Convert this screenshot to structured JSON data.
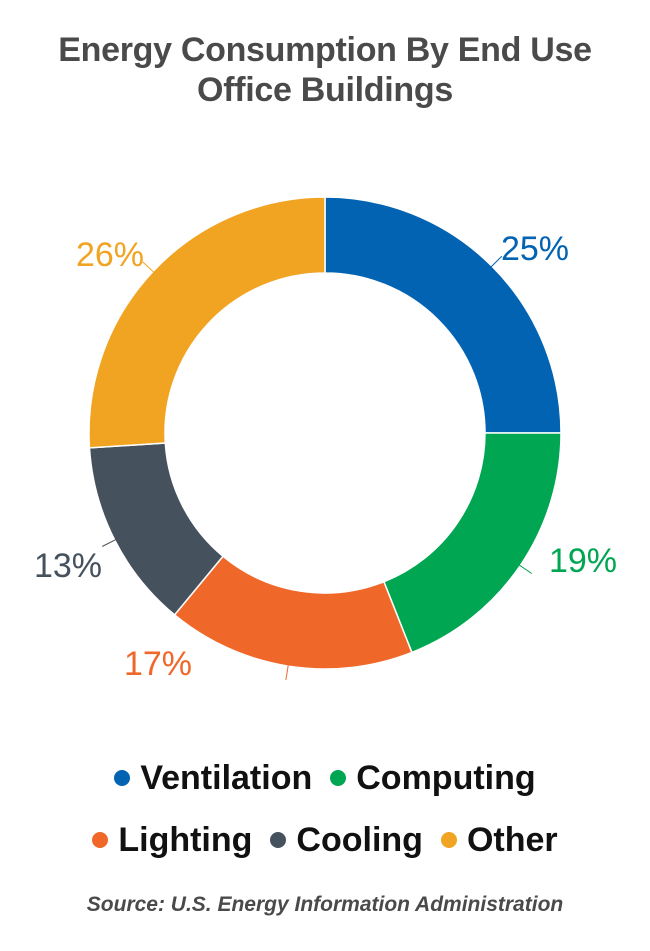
{
  "title_line1": "Energy Consumption By End Use",
  "title_line2": "Office Buildings",
  "source": "Source: U.S. Energy Information Administration",
  "chart_data": {
    "type": "pie",
    "donut": true,
    "title": "Energy Consumption By End Use Office Buildings",
    "categories": [
      "Ventilation",
      "Computing",
      "Lighting",
      "Cooling",
      "Other"
    ],
    "values": [
      25,
      19,
      17,
      13,
      26
    ],
    "labels": [
      "25%",
      "19%",
      "17%",
      "13%",
      "26%"
    ],
    "colors": [
      "#0263b2",
      "#00a651",
      "#f0672a",
      "#45525e",
      "#f1a322"
    ],
    "legend_position": "bottom"
  }
}
